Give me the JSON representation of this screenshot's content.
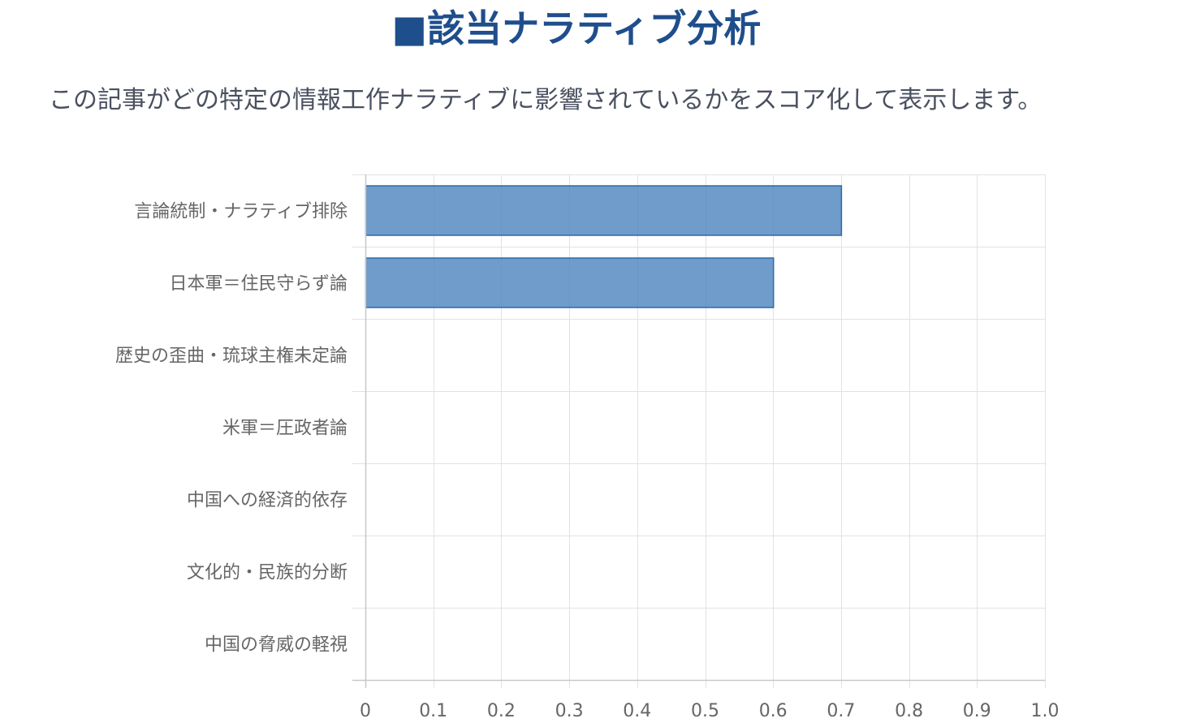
{
  "header": {
    "title": "■該当ナラティブ分析",
    "description": "この記事がどの特定の情報工作ナラティブに影響されているかをスコア化して表示します。"
  },
  "colors": {
    "title": "#1f4e8c",
    "bar_fill": "#4f86c0",
    "bar_stroke": "#2e69a8",
    "grid": "#e2e2e2",
    "axis": "#c8c8c8",
    "label": "#666666"
  },
  "chart_data": {
    "type": "bar",
    "orientation": "horizontal",
    "categories": [
      "言論統制・ナラティブ排除",
      "日本軍＝住民守らず論",
      "歴史の歪曲・琉球主権未定論",
      "米軍＝圧政者論",
      "中国への経済的依存",
      "文化的・民族的分断",
      "中国の脅威の軽視"
    ],
    "values": [
      0.7,
      0.6,
      0,
      0,
      0,
      0,
      0
    ],
    "xlim": [
      0,
      1.0
    ],
    "xticks": [
      "0",
      "0.1",
      "0.2",
      "0.3",
      "0.4",
      "0.5",
      "0.6",
      "0.7",
      "0.8",
      "0.9",
      "1.0"
    ],
    "grid": true,
    "legend": "none"
  }
}
